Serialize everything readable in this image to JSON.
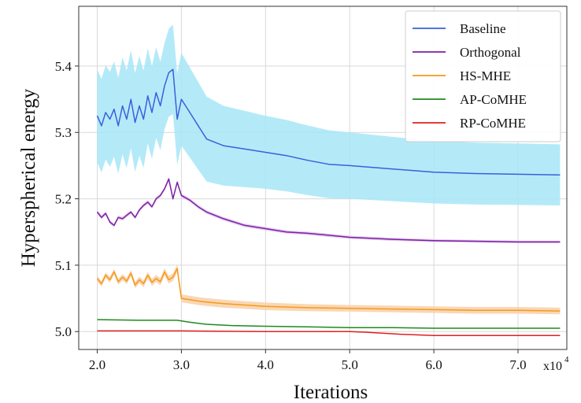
{
  "chart_data": {
    "type": "line",
    "title": "",
    "xlabel": "Iterations",
    "ylabel": "Hyperspherical energy",
    "x_multiplier_label": "x10",
    "x_multiplier_exponent": "4",
    "xlim": [
      1.78,
      7.58
    ],
    "ylim": [
      4.973,
      5.49
    ],
    "xticks": [
      2.0,
      3.0,
      4.0,
      5.0,
      6.0,
      7.0
    ],
    "xtick_labels": [
      "2.0",
      "3.0",
      "4.0",
      "5.0",
      "6.0",
      "7.0"
    ],
    "yticks": [
      5.0,
      5.1,
      5.2,
      5.3,
      5.4
    ],
    "ytick_labels": [
      "5.0",
      "5.1",
      "5.2",
      "5.3",
      "5.4"
    ],
    "grid": true,
    "legend_position": "top-right",
    "series": [
      {
        "name": "Baseline",
        "color": "#3a5fdc",
        "band_color": "#a7e6f7",
        "points": [
          [
            2.0,
            5.325
          ],
          [
            2.05,
            5.31
          ],
          [
            2.1,
            5.33
          ],
          [
            2.15,
            5.32
          ],
          [
            2.2,
            5.335
          ],
          [
            2.25,
            5.31
          ],
          [
            2.3,
            5.34
          ],
          [
            2.35,
            5.32
          ],
          [
            2.4,
            5.35
          ],
          [
            2.45,
            5.315
          ],
          [
            2.5,
            5.34
          ],
          [
            2.55,
            5.32
          ],
          [
            2.6,
            5.355
          ],
          [
            2.65,
            5.33
          ],
          [
            2.7,
            5.36
          ],
          [
            2.75,
            5.34
          ],
          [
            2.8,
            5.37
          ],
          [
            2.85,
            5.39
          ],
          [
            2.9,
            5.395
          ],
          [
            2.95,
            5.32
          ],
          [
            3.0,
            5.35
          ],
          [
            3.1,
            5.33
          ],
          [
            3.2,
            5.31
          ],
          [
            3.3,
            5.29
          ],
          [
            3.5,
            5.28
          ],
          [
            3.75,
            5.275
          ],
          [
            4.0,
            5.27
          ],
          [
            4.25,
            5.265
          ],
          [
            4.5,
            5.258
          ],
          [
            4.75,
            5.252
          ],
          [
            5.0,
            5.25
          ],
          [
            5.5,
            5.245
          ],
          [
            6.0,
            5.24
          ],
          [
            6.5,
            5.238
          ],
          [
            7.0,
            5.237
          ],
          [
            7.5,
            5.236
          ]
        ],
        "band_halfwidth": [
          [
            2.0,
            0.07
          ],
          [
            2.5,
            0.075
          ],
          [
            2.8,
            0.065
          ],
          [
            3.0,
            0.07
          ],
          [
            3.5,
            0.06
          ],
          [
            4.0,
            0.055
          ],
          [
            5.0,
            0.05
          ],
          [
            6.0,
            0.047
          ],
          [
            7.5,
            0.046
          ]
        ]
      },
      {
        "name": "Orthogonal",
        "color": "#7b1fa2",
        "band_color": "#e4c8f0",
        "points": [
          [
            2.0,
            5.18
          ],
          [
            2.05,
            5.172
          ],
          [
            2.1,
            5.178
          ],
          [
            2.15,
            5.165
          ],
          [
            2.2,
            5.16
          ],
          [
            2.25,
            5.172
          ],
          [
            2.3,
            5.17
          ],
          [
            2.35,
            5.175
          ],
          [
            2.4,
            5.18
          ],
          [
            2.45,
            5.172
          ],
          [
            2.5,
            5.183
          ],
          [
            2.55,
            5.19
          ],
          [
            2.6,
            5.195
          ],
          [
            2.65,
            5.188
          ],
          [
            2.7,
            5.2
          ],
          [
            2.75,
            5.205
          ],
          [
            2.8,
            5.215
          ],
          [
            2.85,
            5.23
          ],
          [
            2.9,
            5.2
          ],
          [
            2.95,
            5.225
          ],
          [
            3.0,
            5.205
          ],
          [
            3.1,
            5.198
          ],
          [
            3.2,
            5.188
          ],
          [
            3.3,
            5.18
          ],
          [
            3.5,
            5.17
          ],
          [
            3.75,
            5.16
          ],
          [
            4.0,
            5.155
          ],
          [
            4.25,
            5.15
          ],
          [
            4.5,
            5.148
          ],
          [
            4.75,
            5.145
          ],
          [
            5.0,
            5.142
          ],
          [
            5.5,
            5.139
          ],
          [
            6.0,
            5.137
          ],
          [
            6.5,
            5.136
          ],
          [
            7.0,
            5.135
          ],
          [
            7.5,
            5.135
          ]
        ],
        "band_halfwidth": [
          [
            2.0,
            0.003
          ],
          [
            7.5,
            0.002
          ]
        ]
      },
      {
        "name": "HS-MHE",
        "color": "#f59a1a",
        "band_color": "#f8d0a8",
        "points": [
          [
            2.0,
            5.08
          ],
          [
            2.05,
            5.072
          ],
          [
            2.1,
            5.085
          ],
          [
            2.15,
            5.078
          ],
          [
            2.2,
            5.09
          ],
          [
            2.25,
            5.075
          ],
          [
            2.3,
            5.082
          ],
          [
            2.35,
            5.076
          ],
          [
            2.4,
            5.088
          ],
          [
            2.45,
            5.07
          ],
          [
            2.5,
            5.078
          ],
          [
            2.55,
            5.072
          ],
          [
            2.6,
            5.085
          ],
          [
            2.65,
            5.074
          ],
          [
            2.7,
            5.08
          ],
          [
            2.75,
            5.075
          ],
          [
            2.8,
            5.09
          ],
          [
            2.85,
            5.078
          ],
          [
            2.9,
            5.082
          ],
          [
            2.95,
            5.095
          ],
          [
            3.0,
            5.05
          ],
          [
            3.1,
            5.048
          ],
          [
            3.25,
            5.045
          ],
          [
            3.5,
            5.042
          ],
          [
            3.75,
            5.04
          ],
          [
            4.0,
            5.038
          ],
          [
            4.5,
            5.036
          ],
          [
            5.0,
            5.035
          ],
          [
            5.5,
            5.034
          ],
          [
            6.0,
            5.033
          ],
          [
            6.5,
            5.032
          ],
          [
            7.0,
            5.032
          ],
          [
            7.5,
            5.031
          ]
        ],
        "band_halfwidth": [
          [
            2.0,
            0.004
          ],
          [
            3.0,
            0.006
          ],
          [
            3.5,
            0.006
          ],
          [
            5.0,
            0.005
          ],
          [
            7.5,
            0.005
          ]
        ]
      },
      {
        "name": "AP-CoMHE",
        "color": "#1e8a1e",
        "points": [
          [
            2.0,
            5.018
          ],
          [
            2.5,
            5.017
          ],
          [
            2.95,
            5.017
          ],
          [
            3.1,
            5.014
          ],
          [
            3.3,
            5.011
          ],
          [
            3.6,
            5.009
          ],
          [
            4.0,
            5.008
          ],
          [
            4.5,
            5.007
          ],
          [
            5.0,
            5.006
          ],
          [
            5.5,
            5.006
          ],
          [
            6.0,
            5.005
          ],
          [
            6.5,
            5.005
          ],
          [
            7.0,
            5.005
          ],
          [
            7.5,
            5.005
          ]
        ]
      },
      {
        "name": "RP-CoMHE",
        "color": "#e02020",
        "points": [
          [
            2.0,
            5.001
          ],
          [
            3.0,
            5.001
          ],
          [
            4.0,
            5.0
          ],
          [
            5.0,
            5.0
          ],
          [
            5.2,
            4.999
          ],
          [
            5.6,
            4.996
          ],
          [
            6.0,
            4.994
          ],
          [
            6.5,
            4.994
          ],
          [
            7.0,
            4.994
          ],
          [
            7.5,
            4.994
          ]
        ]
      }
    ]
  }
}
